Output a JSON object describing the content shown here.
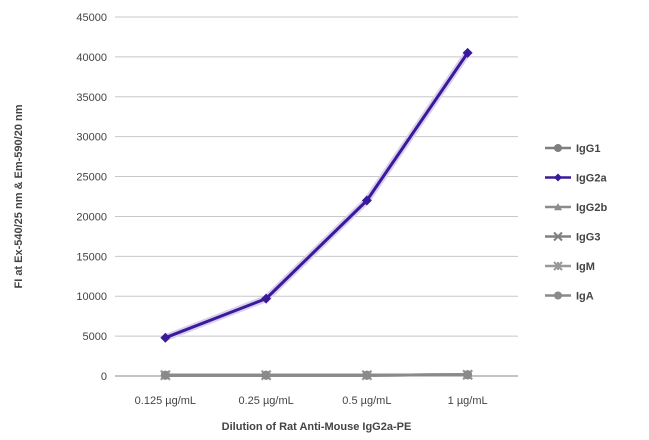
{
  "chart_data": {
    "type": "line",
    "title": "",
    "xlabel": "Dilution of Rat Anti-Mouse IgG2a-PE",
    "ylabel": "FI at Ex-540/25 nm & Em-590/20 nm",
    "categories": [
      "0.125 µg/mL",
      "0.25 µg/mL",
      "0.5 µg/mL",
      "1 µg/mL"
    ],
    "ylim": [
      0,
      45000
    ],
    "yticks": [
      0,
      5000,
      10000,
      15000,
      20000,
      25000,
      30000,
      35000,
      40000,
      45000
    ],
    "grid": true,
    "legend_position": "right",
    "series": [
      {
        "name": "IgG1",
        "values": [
          100,
          100,
          100,
          150
        ],
        "color": "#7f7f7f",
        "marker": "circle"
      },
      {
        "name": "IgG2a",
        "values": [
          4800,
          9700,
          22000,
          40500
        ],
        "color": "#3a1a9a",
        "marker": "diamond"
      },
      {
        "name": "IgG2b",
        "values": [
          100,
          100,
          100,
          150
        ],
        "color": "#8c8c8c",
        "marker": "triangle"
      },
      {
        "name": "IgG3",
        "values": [
          100,
          100,
          100,
          150
        ],
        "color": "#808080",
        "marker": "x"
      },
      {
        "name": "IgM",
        "values": [
          100,
          100,
          100,
          150
        ],
        "color": "#999999",
        "marker": "star"
      },
      {
        "name": "IgA",
        "values": [
          100,
          100,
          100,
          150
        ],
        "color": "#8a8a8a",
        "marker": "circle"
      }
    ]
  }
}
